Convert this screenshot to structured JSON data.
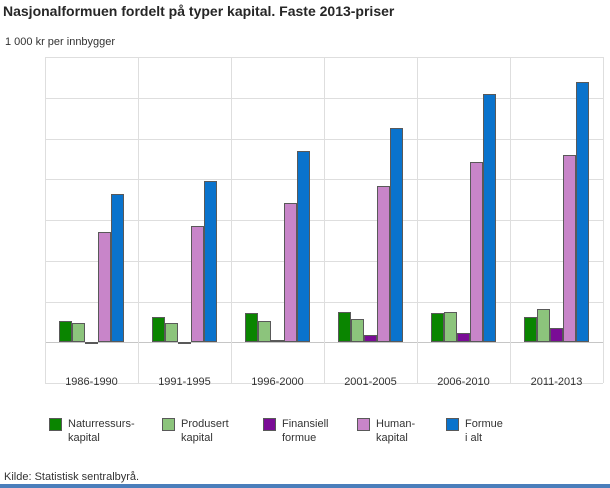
{
  "header": {
    "title": "Nasjonalformuen fordelt på typer kapital. Faste 2013-priser",
    "units_label": "1 000 kr per innbygger"
  },
  "footer": {
    "source": "Kilde: Statistisk sentralbyrå."
  },
  "colors": {
    "grid": "#dedede",
    "bar_border": "#595959",
    "text": "#333333",
    "accent_bar": "#4a7ebb"
  },
  "chart_data": {
    "type": "bar",
    "title": "Nasjonalformuen fordelt på typer kapital. Faste 2013-priser",
    "xlabel": "",
    "ylabel": "1 000 kr per innbygger",
    "ylim": [
      -2000,
      14000
    ],
    "ytick_step": 2000,
    "grid": true,
    "legend_position": "bottom",
    "categories": [
      "1986-1990",
      "1991-1995",
      "1996-2000",
      "2001-2005",
      "2006-2010",
      "2011-2013"
    ],
    "series": [
      {
        "name": "Naturressurskapital",
        "legend_label": "Naturressurs-\nkapital",
        "color": "#0a8500",
        "values": [
          1050,
          1250,
          1440,
          1470,
          1430,
          1250
        ]
      },
      {
        "name": "Produsert kapital",
        "legend_label": "Produsert\nkapital",
        "color": "#8cc47c",
        "values": [
          950,
          950,
          1050,
          1150,
          1500,
          1650
        ]
      },
      {
        "name": "Finansiell formue",
        "legend_label": "Finansiell\nformue",
        "color": "#7a0c96",
        "values": [
          -100,
          -50,
          100,
          350,
          450,
          680
        ]
      },
      {
        "name": "Humankapital",
        "legend_label": "Human-\nkapital",
        "color": "#c885c9",
        "values": [
          5400,
          5700,
          6850,
          7650,
          8850,
          9200
        ]
      },
      {
        "name": "Formue i alt",
        "legend_label": "Formue\ni alt",
        "color": "#0a73cc",
        "values": [
          7300,
          7900,
          9400,
          10500,
          12200,
          12750
        ]
      }
    ]
  }
}
